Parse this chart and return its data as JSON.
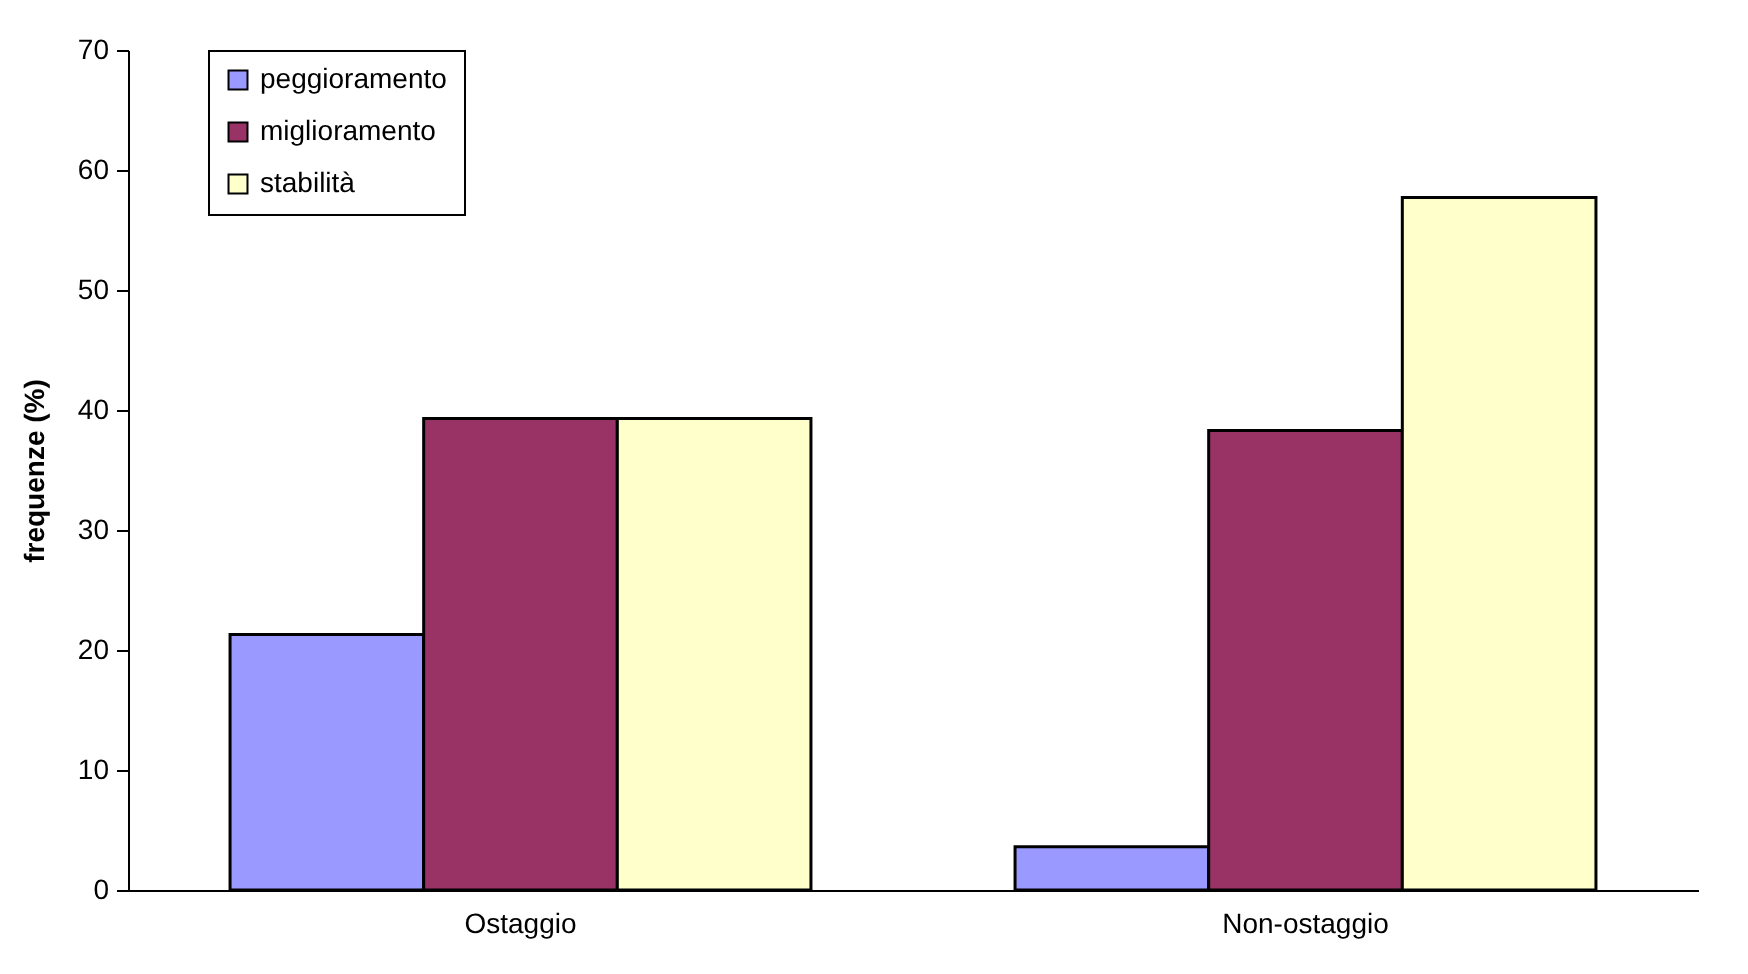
{
  "chart_data": {
    "type": "bar",
    "ylabel": "frequenze (%)",
    "categories": [
      "Ostaggio",
      "Non-ostaggio"
    ],
    "series": [
      {
        "name": "peggioramento",
        "color": "#9999ff",
        "values": [
          21.3,
          3.6
        ]
      },
      {
        "name": "miglioramento",
        "color": "#993366",
        "values": [
          39.3,
          38.3
        ]
      },
      {
        "name": "stabilità",
        "color": "#ffffcc",
        "values": [
          39.3,
          57.7
        ]
      }
    ],
    "ylim": [
      0,
      70
    ],
    "yticks": [
      0,
      10,
      20,
      30,
      40,
      50,
      60,
      70
    ],
    "legend": "top left"
  }
}
